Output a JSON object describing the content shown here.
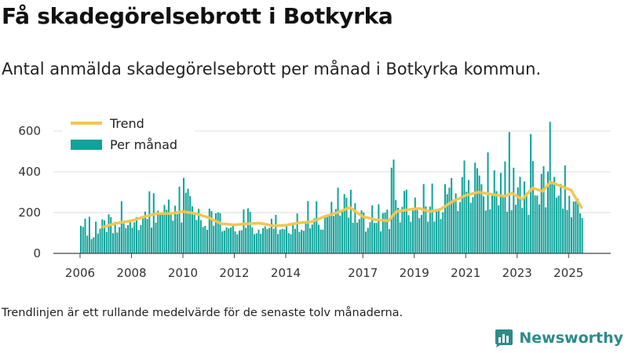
{
  "title": "Få skadegörelsebrott i Botkyrka",
  "subtitle": "Antal anmälda skadegörelsebrott per månad i Botkyrka kommun.",
  "footnote": "Trendlinjen är ett rullande medelvärde för de senaste tolv månaderna.",
  "brand": {
    "name": "Newsworthy"
  },
  "colors": {
    "bar": "#0fa39a",
    "trend": "#f3c651",
    "grid": "#dedede",
    "axis": "#444444"
  },
  "chart_data": {
    "type": "bar",
    "xlabel": "",
    "ylabel": "",
    "ylim": [
      0,
      660
    ],
    "yticks": [
      0,
      200,
      400,
      600
    ],
    "xticks": [
      2006,
      2008,
      2010,
      2012,
      2014,
      2017,
      2019,
      2021,
      2023,
      2025
    ],
    "legend": {
      "position": "top-left",
      "trend_label": "Trend",
      "bars_label": "Per månad"
    },
    "anchors": [
      [
        2006.0,
        135
      ],
      [
        2006.5,
        100
      ],
      [
        2007.0,
        140
      ],
      [
        2007.5,
        160
      ],
      [
        2008.0,
        175
      ],
      [
        2008.5,
        195
      ],
      [
        2009.0,
        200
      ],
      [
        2009.5,
        205
      ],
      [
        2010.0,
        215
      ],
      [
        2010.5,
        180
      ],
      [
        2011.0,
        150
      ],
      [
        2011.5,
        140
      ],
      [
        2012.0,
        145
      ],
      [
        2012.5,
        150
      ],
      [
        2013.0,
        140
      ],
      [
        2013.5,
        130
      ],
      [
        2014.0,
        135
      ],
      [
        2014.5,
        155
      ],
      [
        2015.0,
        165
      ],
      [
        2015.5,
        185
      ],
      [
        2016.0,
        210
      ],
      [
        2016.5,
        200
      ],
      [
        2017.0,
        170
      ],
      [
        2017.5,
        160
      ],
      [
        2018.0,
        175
      ],
      [
        2018.5,
        230
      ],
      [
        2019.0,
        210
      ],
      [
        2019.5,
        230
      ],
      [
        2020.0,
        240
      ],
      [
        2020.5,
        270
      ],
      [
        2021.0,
        290
      ],
      [
        2021.5,
        300
      ],
      [
        2022.0,
        285
      ],
      [
        2022.5,
        310
      ],
      [
        2023.0,
        260
      ],
      [
        2023.5,
        300
      ],
      [
        2024.0,
        320
      ],
      [
        2024.5,
        330
      ],
      [
        2025.0,
        300
      ],
      [
        2025.5,
        200
      ]
    ],
    "spikes": [
      [
        2010.0,
        370
      ],
      [
        2018.15,
        460
      ],
      [
        2018.1,
        420
      ],
      [
        2019.3,
        340
      ],
      [
        2020.4,
        370
      ],
      [
        2021.1,
        360
      ],
      [
        2021.3,
        445
      ],
      [
        2021.8,
        495
      ],
      [
        2022.3,
        395
      ],
      [
        2022.65,
        595
      ],
      [
        2022.8,
        420
      ],
      [
        2023.1,
        375
      ],
      [
        2023.5,
        585
      ],
      [
        2023.9,
        390
      ],
      [
        2024.25,
        645
      ],
      [
        2024.4,
        375
      ],
      [
        2024.7,
        340
      ]
    ],
    "trend": [
      [
        2006.9,
        130
      ],
      [
        2007.5,
        150
      ],
      [
        2008.0,
        160
      ],
      [
        2008.5,
        180
      ],
      [
        2009.0,
        195
      ],
      [
        2009.5,
        195
      ],
      [
        2010.0,
        205
      ],
      [
        2010.5,
        195
      ],
      [
        2011.0,
        175
      ],
      [
        2011.5,
        145
      ],
      [
        2012.0,
        140
      ],
      [
        2012.5,
        145
      ],
      [
        2013.0,
        148
      ],
      [
        2013.5,
        135
      ],
      [
        2014.0,
        138
      ],
      [
        2014.5,
        150
      ],
      [
        2015.0,
        155
      ],
      [
        2015.5,
        180
      ],
      [
        2016.0,
        200
      ],
      [
        2016.5,
        225
      ],
      [
        2017.0,
        180
      ],
      [
        2017.5,
        165
      ],
      [
        2018.0,
        160
      ],
      [
        2018.3,
        205
      ],
      [
        2018.8,
        215
      ],
      [
        2019.2,
        220
      ],
      [
        2019.6,
        205
      ],
      [
        2020.0,
        215
      ],
      [
        2020.5,
        255
      ],
      [
        2021.0,
        285
      ],
      [
        2021.5,
        300
      ],
      [
        2022.0,
        290
      ],
      [
        2022.5,
        280
      ],
      [
        2022.8,
        295
      ],
      [
        2023.2,
        265
      ],
      [
        2023.6,
        320
      ],
      [
        2024.0,
        305
      ],
      [
        2024.3,
        350
      ],
      [
        2024.7,
        330
      ],
      [
        2025.1,
        310
      ],
      [
        2025.5,
        225
      ]
    ]
  }
}
